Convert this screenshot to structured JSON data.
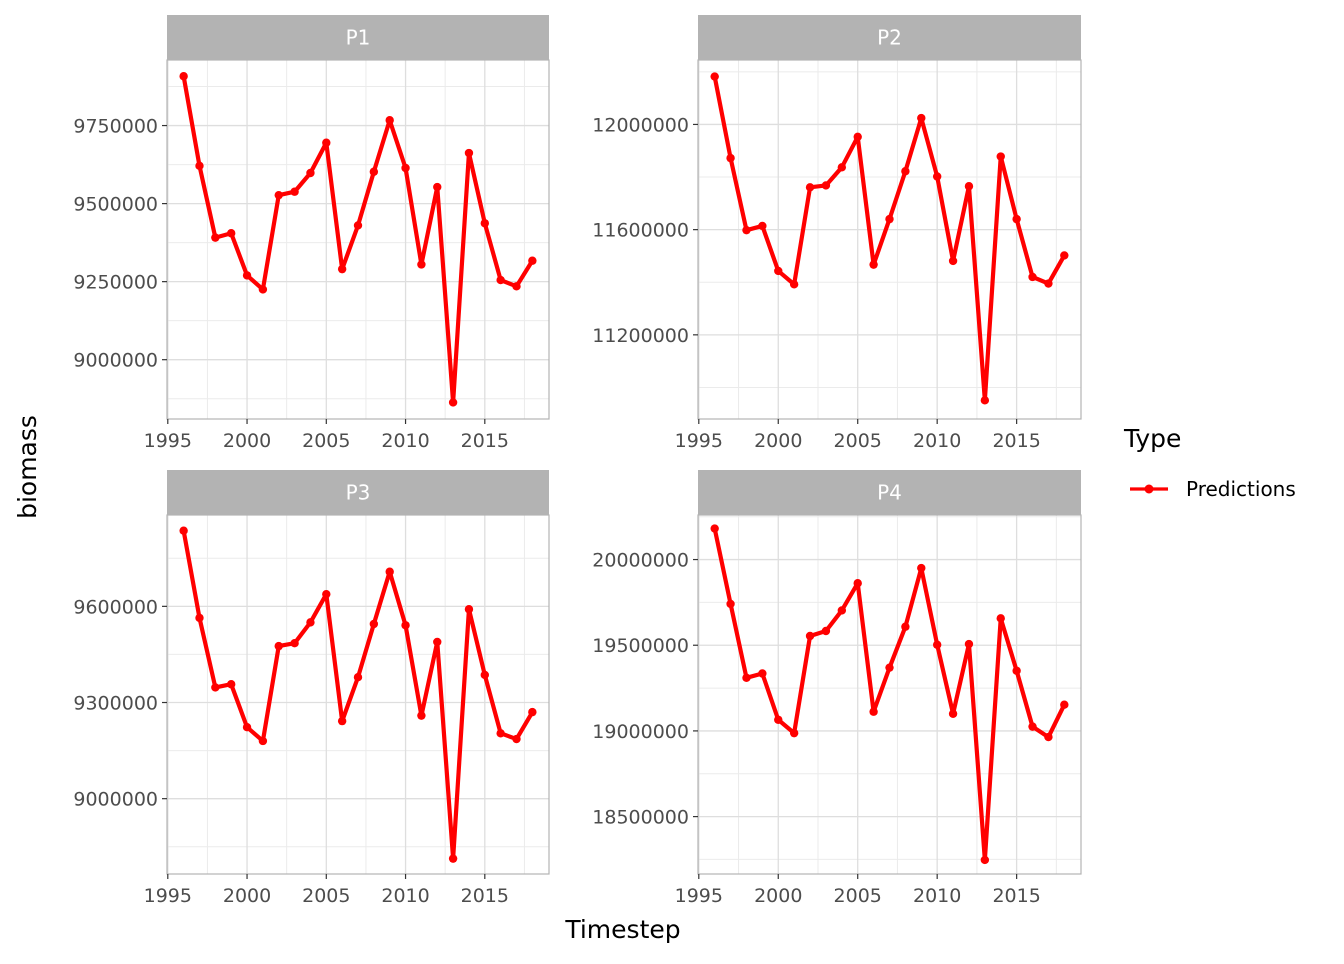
{
  "chart_data": {
    "type": "line",
    "xlabel": "Timestep",
    "ylabel": "biomass",
    "legend": {
      "title": "Type",
      "entries": [
        "Predictions"
      ],
      "placement": "right"
    },
    "series_color": "#ff0000",
    "grid": true,
    "x": [
      1996,
      1997,
      1998,
      1999,
      2000,
      2001,
      2002,
      2003,
      2004,
      2005,
      2006,
      2007,
      2008,
      2009,
      2010,
      2011,
      2012,
      2013,
      2014,
      2015,
      2016,
      2017,
      2018
    ],
    "xticks": [
      1995,
      2000,
      2005,
      2010,
      2015
    ],
    "xtick_labels": [
      "1995",
      "2000",
      "2005",
      "2010",
      "2015"
    ],
    "xlim": [
      1994.95,
      2019.05
    ],
    "panels": [
      {
        "title": "P1",
        "series": [
          {
            "name": "Predictions",
            "values": [
              9908000,
              9621000,
              9391000,
              9405000,
              9270000,
              9225000,
              9527000,
              9538000,
              9598000,
              9695000,
              9290000,
              9430000,
              9602000,
              9767000,
              9614000,
              9305000,
              9553000,
              8863000,
              9662000,
              9437000,
              9255000,
              9235000,
              9317000
            ]
          }
        ],
        "yticks": [
          9000000,
          9250000,
          9500000,
          9750000
        ],
        "ytick_labels": [
          "9000000",
          "9250000",
          "9500000",
          "9750000"
        ],
        "ylim": [
          8810000,
          9960000
        ]
      },
      {
        "title": "P2",
        "series": [
          {
            "name": "Predictions",
            "values": [
              12182000,
              11872000,
              11598000,
              11614000,
              11443000,
              11392000,
              11761000,
              11768000,
              11837000,
              11953000,
              11467000,
              11640000,
              11822000,
              12024000,
              11802000,
              11481000,
              11765000,
              10951000,
              11878000,
              11640000,
              11420000,
              11395000,
              11502000
            ]
          }
        ],
        "yticks": [
          11200000,
          11600000,
          12000000
        ],
        "ytick_labels": [
          "11200000",
          "11600000",
          "12000000"
        ],
        "ylim": [
          10880000,
          12245000
        ]
      },
      {
        "title": "P3",
        "series": [
          {
            "name": "Predictions",
            "values": [
              9836000,
              9564000,
              9347000,
              9357000,
              9223000,
              9180000,
              9476000,
              9485000,
              9550000,
              9638000,
              9242000,
              9379000,
              9545000,
              9708000,
              9541000,
              9259000,
              9489000,
              8813000,
              9591000,
              9386000,
              9204000,
              9186000,
              9270000
            ]
          }
        ],
        "yticks": [
          9000000,
          9300000,
          9600000
        ],
        "ytick_labels": [
          "9000000",
          "9300000",
          "9600000"
        ],
        "ylim": [
          8765000,
          9885000
        ]
      },
      {
        "title": "P4",
        "series": [
          {
            "name": "Predictions",
            "values": [
              20181000,
              19741000,
              19310000,
              19335000,
              19065000,
              18987000,
              19554000,
              19583000,
              19703000,
              19862000,
              19112000,
              19369000,
              19608000,
              19950000,
              19503000,
              19100000,
              19507000,
              18247000,
              19657000,
              19351000,
              19025000,
              18964000,
              19153000
            ]
          }
        ],
        "yticks": [
          18500000,
          19000000,
          19500000,
          20000000
        ],
        "ytick_labels": [
          "18500000",
          "19000000",
          "19500000",
          "20000000"
        ],
        "ylim": [
          18165000,
          20260000
        ]
      }
    ]
  }
}
